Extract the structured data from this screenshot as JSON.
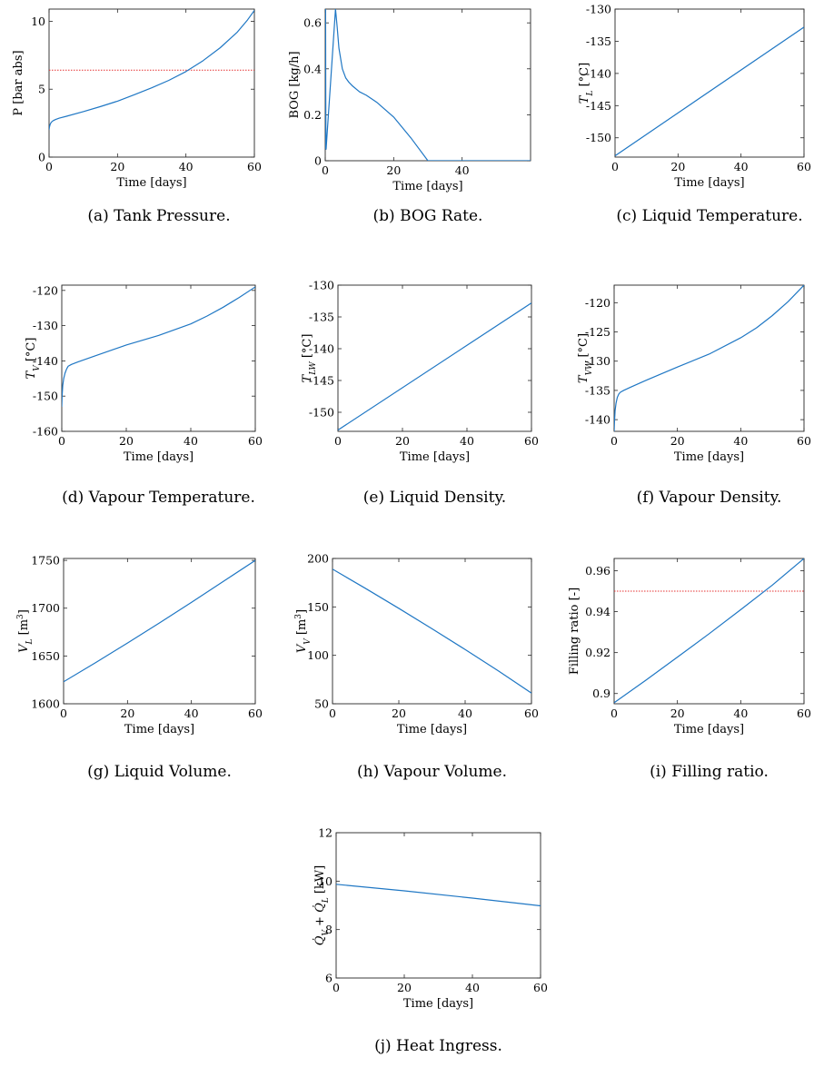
{
  "chart_data": [
    {
      "id": "a",
      "type": "line",
      "caption": "(a)  Tank Pressure.",
      "xlabel": "Time [days]",
      "ylabel": "P [bar abs]",
      "xlim": [
        0,
        60
      ],
      "ylim": [
        0,
        10.9
      ],
      "xticks": [
        "0",
        "20",
        "40",
        "60"
      ],
      "xtick_values": [
        0,
        20,
        40,
        60
      ],
      "yticks": [
        "0",
        "5",
        "10"
      ],
      "ytick_values": [
        0,
        5,
        10
      ],
      "series": [
        {
          "x": [
            0,
            0.1,
            0.3,
            0.6,
            1,
            1.5,
            2,
            3,
            5,
            10,
            15,
            20,
            25,
            30,
            35,
            40,
            45,
            50,
            55,
            58,
            60
          ],
          "y": [
            2.0,
            2.2,
            2.4,
            2.55,
            2.65,
            2.72,
            2.78,
            2.87,
            3.0,
            3.35,
            3.72,
            4.12,
            4.6,
            5.1,
            5.65,
            6.3,
            7.1,
            8.05,
            9.2,
            10.1,
            10.8
          ],
          "color": "#1f77c4"
        }
      ],
      "hlines": [
        {
          "y": 6.4,
          "color": "#e53030",
          "style": "dotted"
        }
      ]
    },
    {
      "id": "b",
      "type": "line",
      "caption": "(b)  BOG Rate.",
      "xlabel": "Time [days]",
      "ylabel": "BOG [kg/h]",
      "xlim": [
        0,
        60
      ],
      "ylim": [
        0,
        0.66
      ],
      "xticks": [
        "0",
        "20",
        "40"
      ],
      "xtick_values": [
        0,
        20,
        40
      ],
      "yticks": [
        "0",
        "0.2",
        "0.4",
        "0.6"
      ],
      "ytick_values": [
        0,
        0.2,
        0.4,
        0.6
      ],
      "series": [
        {
          "x": [
            0,
            0.05,
            0.1,
            0.15,
            0.2,
            0.25,
            3.0,
            3.5,
            4,
            5,
            6,
            7,
            8,
            10,
            12,
            15,
            20,
            25,
            30,
            60
          ],
          "y": [
            0.05,
            0.66,
            0.66,
            0.3,
            0.1,
            0.05,
            0.66,
            0.58,
            0.49,
            0.4,
            0.36,
            0.34,
            0.325,
            0.3,
            0.285,
            0.255,
            0.19,
            0.1,
            0.0,
            0.0
          ],
          "color": "#1f77c4"
        }
      ]
    },
    {
      "id": "c",
      "type": "line",
      "caption": "(c)  Liquid Temperature.",
      "xlabel": "Time [days]",
      "ylabel": "T_L [°C]",
      "xlim": [
        0,
        60
      ],
      "ylim": [
        -153,
        -130
      ],
      "xticks": [
        "0",
        "20",
        "40",
        "60"
      ],
      "xtick_values": [
        0,
        20,
        40,
        60
      ],
      "yticks": [
        "-150",
        "-145",
        "-140",
        "-135",
        "-130"
      ],
      "ytick_values": [
        -150,
        -145,
        -140,
        -135,
        -130
      ],
      "series": [
        {
          "x": [
            0,
            60
          ],
          "y": [
            -152.8,
            -132.8
          ],
          "color": "#1f77c4"
        }
      ]
    },
    {
      "id": "d",
      "type": "line",
      "caption": "(d)  Vapour Temperature.",
      "xlabel": "Time [days]",
      "ylabel": "T_V [°C]",
      "xlim": [
        0,
        60
      ],
      "ylim": [
        -160,
        -118.5
      ],
      "xticks": [
        "0",
        "20",
        "40",
        "60"
      ],
      "xtick_values": [
        0,
        20,
        40,
        60
      ],
      "yticks": [
        "-160",
        "-150",
        "-140",
        "-130",
        "-120"
      ],
      "ytick_values": [
        -160,
        -150,
        -140,
        -130,
        -120
      ],
      "series": [
        {
          "x": [
            0,
            0.1,
            0.3,
            0.6,
            1,
            1.5,
            2,
            3,
            5,
            10,
            20,
            30,
            40,
            45,
            50,
            55,
            60
          ],
          "y": [
            -153,
            -150,
            -147,
            -145,
            -143.5,
            -142.3,
            -141.5,
            -141,
            -140.3,
            -138.7,
            -135.5,
            -132.8,
            -129.5,
            -127.3,
            -124.8,
            -122,
            -119
          ],
          "color": "#1f77c4"
        }
      ]
    },
    {
      "id": "e",
      "type": "line",
      "caption": "(e)  Liquid Density.",
      "xlabel": "Time [days]",
      "ylabel": "T_LW [°C]",
      "xlim": [
        0,
        60
      ],
      "ylim": [
        -153,
        -130
      ],
      "xticks": [
        "0",
        "20",
        "40",
        "60"
      ],
      "xtick_values": [
        0,
        20,
        40,
        60
      ],
      "yticks": [
        "-150",
        "-145",
        "-140",
        "-135",
        "-130"
      ],
      "ytick_values": [
        -150,
        -145,
        -140,
        -135,
        -130
      ],
      "series": [
        {
          "x": [
            0,
            60
          ],
          "y": [
            -152.8,
            -132.8
          ],
          "color": "#1f77c4"
        }
      ]
    },
    {
      "id": "f",
      "type": "line",
      "caption": "(f)  Vapour Density.",
      "xlabel": "Time [days]",
      "ylabel": "T_VW [°C]",
      "xlim": [
        0,
        60
      ],
      "ylim": [
        -142,
        -117
      ],
      "xticks": [
        "0",
        "20",
        "40",
        "60"
      ],
      "xtick_values": [
        0,
        20,
        40,
        60
      ],
      "yticks": [
        "-140",
        "-135",
        "-130",
        "-125",
        "-120"
      ],
      "ytick_values": [
        -140,
        -135,
        -130,
        -125,
        -120
      ],
      "series": [
        {
          "x": [
            0,
            0.1,
            0.3,
            0.6,
            1,
            1.5,
            2,
            3,
            5,
            10,
            20,
            30,
            40,
            45,
            50,
            55,
            60
          ],
          "y": [
            -142,
            -140.5,
            -138.5,
            -137.2,
            -136.2,
            -135.6,
            -135.3,
            -135,
            -134.5,
            -133.3,
            -131,
            -128.8,
            -126,
            -124.3,
            -122.2,
            -119.8,
            -117
          ],
          "color": "#1f77c4"
        }
      ]
    },
    {
      "id": "g",
      "type": "line",
      "caption": "(g)  Liquid Volume.",
      "xlabel": "Time [days]",
      "ylabel": "V_L [m^3]",
      "xlim": [
        0,
        60
      ],
      "ylim": [
        1600,
        1752
      ],
      "xticks": [
        "0",
        "20",
        "40",
        "60"
      ],
      "xtick_values": [
        0,
        20,
        40,
        60
      ],
      "yticks": [
        "1600",
        "1650",
        "1700",
        "1750"
      ],
      "ytick_values": [
        1600,
        1650,
        1700,
        1750
      ],
      "series": [
        {
          "x": [
            0,
            10,
            20,
            30,
            40,
            50,
            60
          ],
          "y": [
            1623,
            1643,
            1663.5,
            1684.5,
            1706,
            1728,
            1750
          ],
          "color": "#1f77c4"
        }
      ]
    },
    {
      "id": "h",
      "type": "line",
      "caption": "(h)  Vapour Volume.",
      "xlabel": "Time [days]",
      "ylabel": "V_V [m^3]",
      "xlim": [
        0,
        60
      ],
      "ylim": [
        50,
        200
      ],
      "xticks": [
        "0",
        "20",
        "40",
        "60"
      ],
      "xtick_values": [
        0,
        20,
        40,
        60
      ],
      "yticks": [
        "50",
        "100",
        "150",
        "200"
      ],
      "ytick_values": [
        50,
        100,
        150,
        200
      ],
      "series": [
        {
          "x": [
            0,
            10,
            20,
            30,
            40,
            50,
            60
          ],
          "y": [
            189,
            169,
            148.5,
            127.5,
            106,
            84,
            61
          ],
          "color": "#1f77c4"
        }
      ]
    },
    {
      "id": "i",
      "type": "line",
      "caption": "(i)  Filling ratio.",
      "xlabel": "Time [days]",
      "ylabel": "Filling ratio [-]",
      "xlim": [
        0,
        60
      ],
      "ylim": [
        0.895,
        0.966
      ],
      "xticks": [
        "0",
        "20",
        "40",
        "60"
      ],
      "xtick_values": [
        0,
        20,
        40,
        60
      ],
      "yticks": [
        "0.9",
        "0.92",
        "0.94",
        "0.96"
      ],
      "ytick_values": [
        0.9,
        0.92,
        0.94,
        0.96
      ],
      "series": [
        {
          "x": [
            0,
            10,
            20,
            30,
            40,
            50,
            60
          ],
          "y": [
            0.8955,
            0.9065,
            0.9178,
            0.9292,
            0.941,
            0.953,
            0.966
          ],
          "color": "#1f77c4"
        }
      ],
      "hlines": [
        {
          "y": 0.95,
          "color": "#e53030",
          "style": "dotted"
        }
      ]
    },
    {
      "id": "j",
      "type": "line",
      "caption": "(j)  Heat Ingress.",
      "xlabel": "Time [days]",
      "ylabel": "Q̇_V + Q̇_L [kW]",
      "xlim": [
        0,
        60
      ],
      "ylim": [
        6,
        12
      ],
      "xticks": [
        "0",
        "20",
        "40",
        "60"
      ],
      "xtick_values": [
        0,
        20,
        40,
        60
      ],
      "yticks": [
        "6",
        "8",
        "10",
        "12"
      ],
      "ytick_values": [
        6,
        8,
        10,
        12
      ],
      "series": [
        {
          "x": [
            0,
            20,
            40,
            60
          ],
          "y": [
            9.87,
            9.6,
            9.3,
            8.98
          ],
          "color": "#1f77c4"
        }
      ]
    }
  ]
}
